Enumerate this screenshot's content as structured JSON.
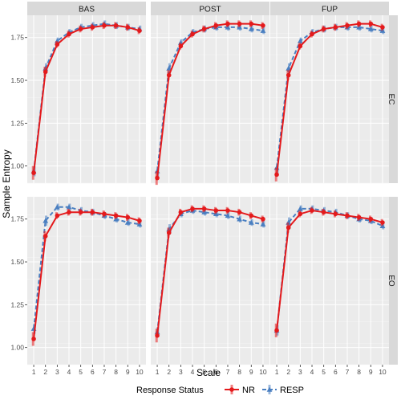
{
  "chart_data": {
    "type": "line",
    "xlabel": "Scale",
    "ylabel": "Sample Entropy",
    "x": [
      1,
      2,
      3,
      4,
      5,
      6,
      7,
      8,
      9,
      10
    ],
    "ylim": [
      0.9,
      1.88
    ],
    "yticks": [
      1.0,
      1.25,
      1.5,
      1.75
    ],
    "ytick_labels": [
      "1.00",
      "1.25",
      "1.50",
      "1.75"
    ],
    "grid": true,
    "columns": [
      "BAS",
      "POST",
      "FUP"
    ],
    "rows": [
      "EC",
      "EO"
    ],
    "legend": {
      "title": "Response Status",
      "position": "bottom",
      "entries": [
        "NR",
        "RESP"
      ]
    },
    "colors": {
      "NR": "#e41a1c",
      "RESP": "#4a7fc1",
      "panel_bg": "#ebebeb",
      "strip_bg": "#d9d9d9"
    },
    "panels": [
      {
        "column": "BAS",
        "row": "EC",
        "series": [
          {
            "name": "NR",
            "values": [
              0.96,
              1.55,
              1.71,
              1.77,
              1.8,
              1.81,
              1.82,
              1.82,
              1.81,
              1.79
            ],
            "errors": [
              0.04,
              0.03,
              0.02,
              0.02,
              0.02,
              0.02,
              0.02,
              0.02,
              0.02,
              0.02
            ]
          },
          {
            "name": "RESP",
            "values": [
              0.97,
              1.57,
              1.73,
              1.78,
              1.81,
              1.82,
              1.83,
              1.82,
              1.81,
              1.8
            ],
            "errors": [
              0.03,
              0.03,
              0.02,
              0.02,
              0.02,
              0.02,
              0.02,
              0.02,
              0.02,
              0.02
            ]
          }
        ]
      },
      {
        "column": "POST",
        "row": "EC",
        "series": [
          {
            "name": "NR",
            "values": [
              0.93,
              1.53,
              1.7,
              1.77,
              1.8,
              1.82,
              1.83,
              1.83,
              1.83,
              1.82
            ],
            "errors": [
              0.04,
              0.03,
              0.02,
              0.02,
              0.02,
              0.02,
              0.02,
              0.02,
              0.02,
              0.02
            ]
          },
          {
            "name": "RESP",
            "values": [
              0.97,
              1.57,
              1.72,
              1.78,
              1.8,
              1.81,
              1.81,
              1.81,
              1.8,
              1.79
            ],
            "errors": [
              0.03,
              0.03,
              0.02,
              0.02,
              0.02,
              0.02,
              0.02,
              0.02,
              0.02,
              0.02
            ]
          }
        ]
      },
      {
        "column": "FUP",
        "row": "EC",
        "series": [
          {
            "name": "NR",
            "values": [
              0.95,
              1.53,
              1.7,
              1.77,
              1.8,
              1.81,
              1.82,
              1.83,
              1.83,
              1.81
            ],
            "errors": [
              0.04,
              0.03,
              0.02,
              0.02,
              0.02,
              0.02,
              0.02,
              0.02,
              0.02,
              0.02
            ]
          },
          {
            "name": "RESP",
            "values": [
              0.99,
              1.57,
              1.73,
              1.78,
              1.8,
              1.81,
              1.81,
              1.81,
              1.8,
              1.79
            ],
            "errors": [
              0.03,
              0.03,
              0.02,
              0.02,
              0.02,
              0.02,
              0.02,
              0.02,
              0.02,
              0.02
            ]
          }
        ]
      },
      {
        "column": "BAS",
        "row": "EO",
        "series": [
          {
            "name": "NR",
            "values": [
              1.05,
              1.65,
              1.77,
              1.79,
              1.79,
              1.79,
              1.78,
              1.77,
              1.76,
              1.74
            ],
            "errors": [
              0.04,
              0.03,
              0.02,
              0.02,
              0.02,
              0.02,
              0.02,
              0.02,
              0.02,
              0.02
            ]
          },
          {
            "name": "RESP",
            "values": [
              1.11,
              1.74,
              1.82,
              1.82,
              1.8,
              1.79,
              1.77,
              1.75,
              1.73,
              1.72
            ],
            "errors": [
              0.03,
              0.03,
              0.02,
              0.02,
              0.02,
              0.02,
              0.02,
              0.02,
              0.02,
              0.02
            ]
          }
        ]
      },
      {
        "column": "POST",
        "row": "EO",
        "series": [
          {
            "name": "NR",
            "values": [
              1.07,
              1.67,
              1.79,
              1.81,
              1.81,
              1.8,
              1.8,
              1.79,
              1.77,
              1.75
            ],
            "errors": [
              0.04,
              0.03,
              0.02,
              0.02,
              0.02,
              0.02,
              0.02,
              0.02,
              0.02,
              0.02
            ]
          },
          {
            "name": "RESP",
            "values": [
              1.09,
              1.69,
              1.78,
              1.8,
              1.79,
              1.78,
              1.77,
              1.75,
              1.73,
              1.72
            ],
            "errors": [
              0.03,
              0.03,
              0.02,
              0.02,
              0.02,
              0.02,
              0.02,
              0.02,
              0.02,
              0.02
            ]
          }
        ]
      },
      {
        "column": "FUP",
        "row": "EO",
        "series": [
          {
            "name": "NR",
            "values": [
              1.1,
              1.7,
              1.78,
              1.8,
              1.79,
              1.78,
              1.77,
              1.76,
              1.75,
              1.73
            ],
            "errors": [
              0.04,
              0.03,
              0.02,
              0.02,
              0.02,
              0.02,
              0.02,
              0.02,
              0.02,
              0.02
            ]
          },
          {
            "name": "RESP",
            "values": [
              1.1,
              1.73,
              1.81,
              1.81,
              1.8,
              1.79,
              1.77,
              1.75,
              1.74,
              1.71
            ],
            "errors": [
              0.03,
              0.03,
              0.02,
              0.02,
              0.02,
              0.02,
              0.02,
              0.02,
              0.02,
              0.02
            ]
          }
        ]
      }
    ]
  }
}
